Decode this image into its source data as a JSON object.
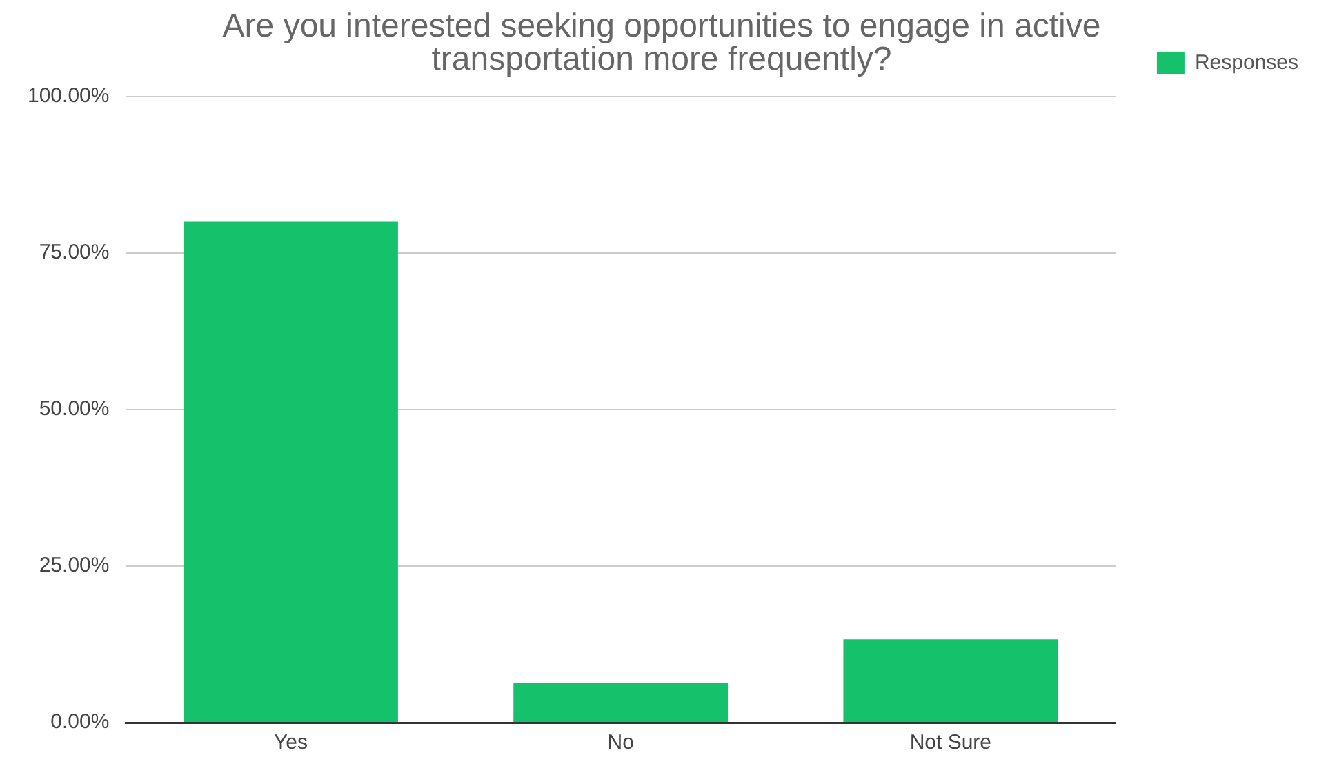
{
  "chart_data": {
    "type": "bar",
    "title": "Are you interested seeking opportunities to engage in active transportation more frequently?",
    "categories": [
      "Yes",
      "No",
      "Not Sure"
    ],
    "series": [
      {
        "name": "Responses",
        "color": "#15c26b",
        "values": [
          80,
          6.3,
          13.3
        ]
      }
    ],
    "ylim": [
      0,
      100
    ],
    "yticks": [
      {
        "value": 0,
        "label": "0.00%"
      },
      {
        "value": 25,
        "label": "25.00%"
      },
      {
        "value": 50,
        "label": "50.00%"
      },
      {
        "value": 75,
        "label": "75.00%"
      },
      {
        "value": 100,
        "label": "100.00%"
      }
    ],
    "grid": "y",
    "legend": "top right"
  }
}
